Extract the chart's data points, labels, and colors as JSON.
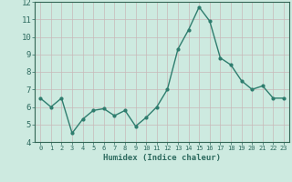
{
  "xlabel": "Humidex (Indice chaleur)",
  "x_values": [
    0,
    1,
    2,
    3,
    4,
    5,
    6,
    7,
    8,
    9,
    10,
    11,
    12,
    13,
    14,
    15,
    16,
    17,
    18,
    19,
    20,
    21,
    22,
    23
  ],
  "y_values": [
    6.5,
    6.0,
    6.5,
    4.5,
    5.3,
    5.8,
    5.9,
    5.5,
    5.8,
    4.9,
    5.4,
    6.0,
    7.0,
    9.3,
    10.4,
    11.7,
    10.9,
    8.8,
    8.4,
    7.5,
    7.0,
    7.2,
    6.5,
    6.5
  ],
  "ylim": [
    4,
    12
  ],
  "xlim": [
    -0.5,
    23.5
  ],
  "yticks": [
    4,
    5,
    6,
    7,
    8,
    9,
    10,
    11,
    12
  ],
  "xticks": [
    0,
    1,
    2,
    3,
    4,
    5,
    6,
    7,
    8,
    9,
    10,
    11,
    12,
    13,
    14,
    15,
    16,
    17,
    18,
    19,
    20,
    21,
    22,
    23
  ],
  "line_color": "#2e7d6e",
  "marker": "o",
  "marker_size": 2.0,
  "bg_color": "#cdeae0",
  "grid_color": "#c8b8b8",
  "axis_color": "#336655",
  "tick_label_color": "#2e6b60",
  "xlabel_color": "#2e6b60",
  "line_width": 1.0
}
